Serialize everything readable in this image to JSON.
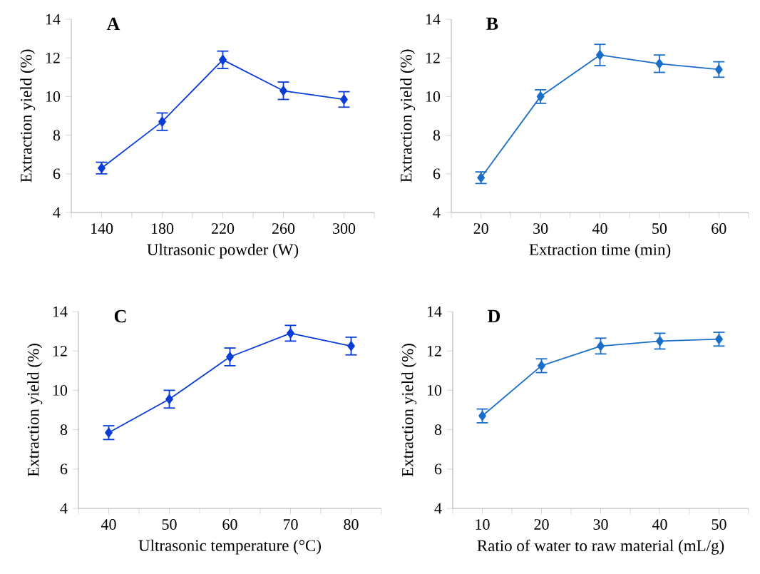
{
  "chart_data": [
    {
      "type": "line",
      "title": "A",
      "categories": [
        "140",
        "180",
        "220",
        "260",
        "300"
      ],
      "xlabel": "Ultrasonic powder (W)",
      "ylabel": "Extraction yield (%)",
      "ylim": [
        4,
        14
      ],
      "yticks": [
        4,
        6,
        8,
        10,
        12,
        14
      ],
      "marker": "diamond",
      "line_style": "solid",
      "series": [
        {
          "color": "#0a3cd6",
          "values": [
            6.3,
            8.7,
            11.9,
            10.3,
            9.85
          ],
          "errors": [
            0.3,
            0.45,
            0.45,
            0.45,
            0.4
          ]
        }
      ]
    },
    {
      "type": "line",
      "title": "B",
      "categories": [
        "20",
        "30",
        "40",
        "50",
        "60"
      ],
      "xlabel": "Extraction time (min)",
      "ylabel": "Extraction yield (%)",
      "ylim": [
        4,
        14
      ],
      "yticks": [
        4,
        6,
        8,
        10,
        12,
        14
      ],
      "marker": "diamond",
      "line_style": "solid",
      "series": [
        {
          "color": "#1a6ec8",
          "values": [
            5.8,
            10.0,
            12.15,
            11.7,
            11.4
          ],
          "errors": [
            0.3,
            0.35,
            0.55,
            0.45,
            0.4
          ]
        }
      ]
    },
    {
      "type": "line",
      "title": "C",
      "categories": [
        "40",
        "50",
        "60",
        "70",
        "80"
      ],
      "xlabel": "Ultrasonic temperature (°C)",
      "ylabel": "Extraction yield (%)",
      "ylim": [
        4,
        14
      ],
      "yticks": [
        4,
        6,
        8,
        10,
        12,
        14
      ],
      "marker": "diamond",
      "line_style": "solid",
      "series": [
        {
          "color": "#0a3cd6",
          "values": [
            7.85,
            9.55,
            11.7,
            12.9,
            12.25
          ],
          "errors": [
            0.35,
            0.45,
            0.45,
            0.4,
            0.45
          ]
        }
      ]
    },
    {
      "type": "line",
      "title": "D",
      "categories": [
        "10",
        "20",
        "30",
        "40",
        "50"
      ],
      "xlabel": "Ratio of water to raw material (mL/g)",
      "ylabel": "Extraction yield (%)",
      "ylim": [
        4,
        14
      ],
      "yticks": [
        4,
        6,
        8,
        10,
        12,
        14
      ],
      "marker": "diamond",
      "line_style": "solid",
      "series": [
        {
          "color": "#1a6ec8",
          "values": [
            8.7,
            11.25,
            12.25,
            12.5,
            12.6
          ],
          "errors": [
            0.35,
            0.35,
            0.4,
            0.4,
            0.35
          ]
        }
      ]
    }
  ]
}
